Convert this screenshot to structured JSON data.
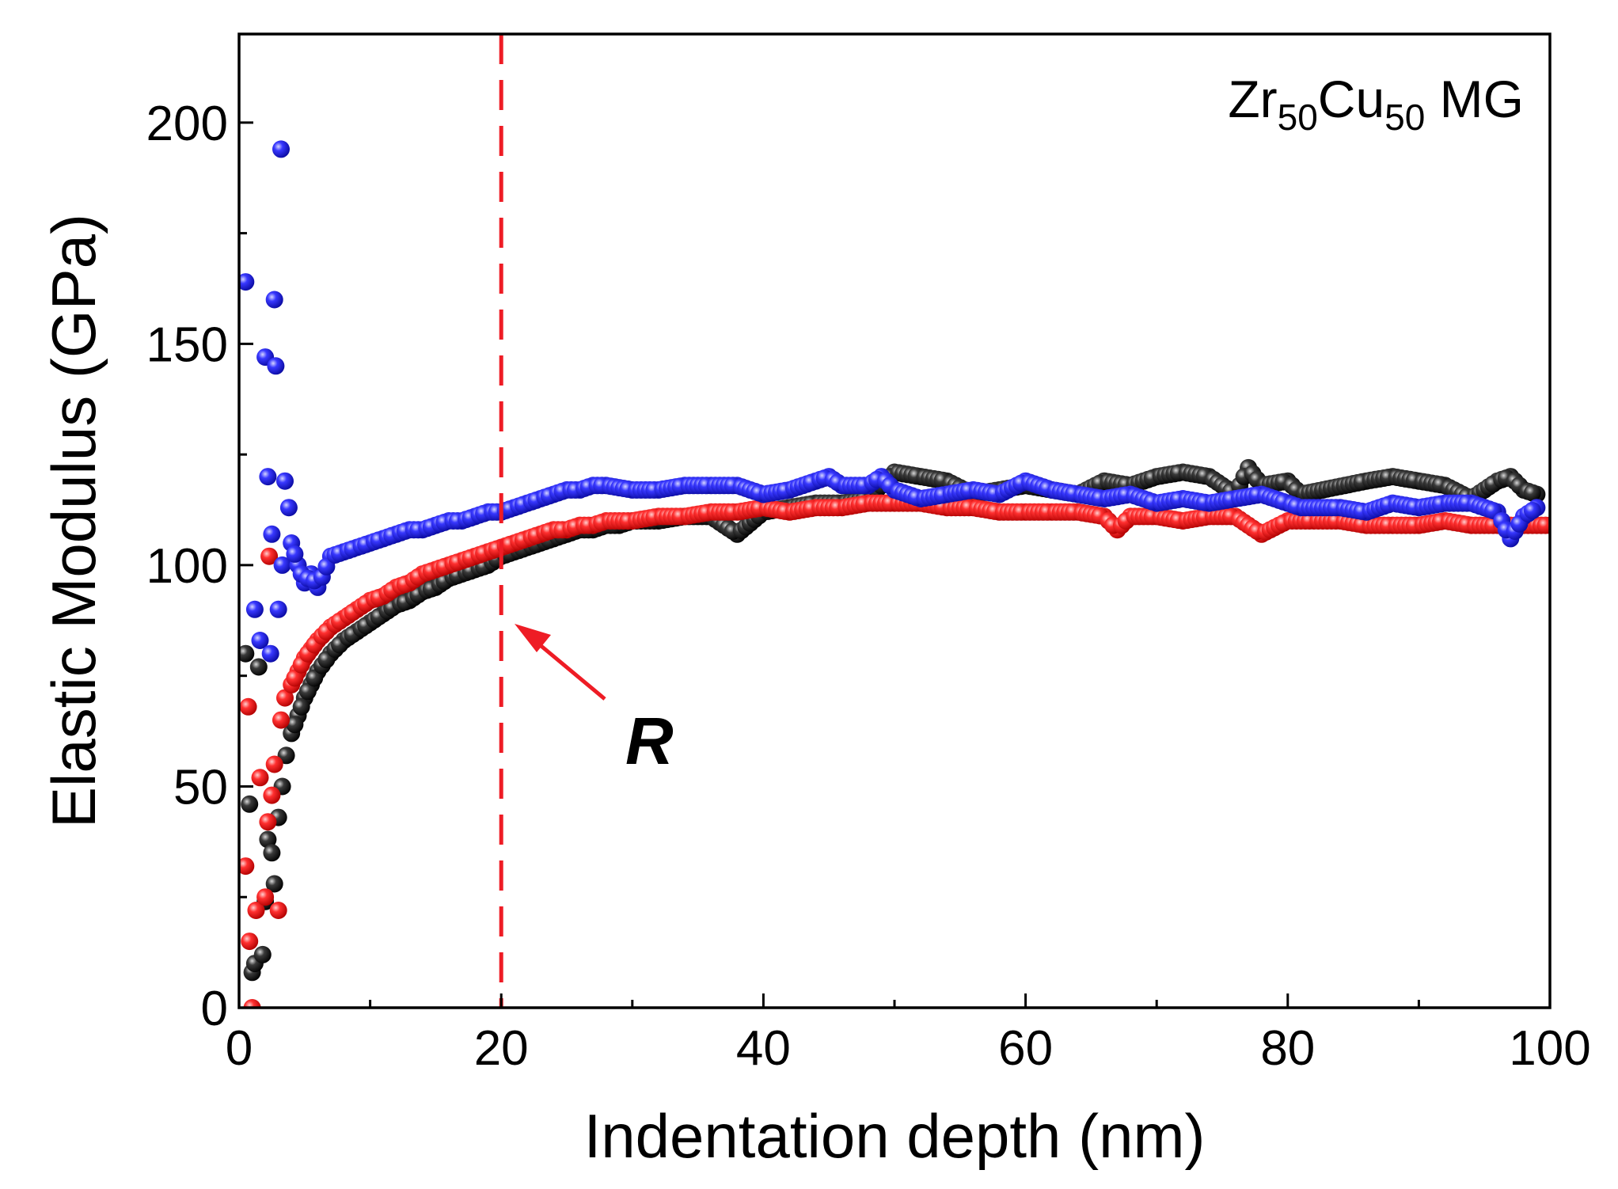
{
  "chart_data": {
    "type": "scatter",
    "title": "",
    "xlabel": "Indentation depth (nm)",
    "ylabel": "Elastic Modulus (GPa)",
    "xlim": [
      0,
      100
    ],
    "ylim": [
      0,
      220
    ],
    "x_ticks": [
      0,
      20,
      40,
      60,
      80,
      100
    ],
    "y_ticks": [
      0,
      50,
      100,
      150,
      200
    ],
    "grid": false,
    "legend": "none",
    "annotation": {
      "label": {
        "base": "Zr",
        "sub1": "50",
        "mid": "Cu",
        "sub2": "50",
        "tail": " MG"
      },
      "marker_line_x": 20,
      "marker_line_color": "#ee1c25",
      "arrow_label": "R"
    },
    "series": [
      {
        "color": "#000000",
        "points": [
          [
            0.5,
            80
          ],
          [
            0.8,
            46
          ],
          [
            1.0,
            8
          ],
          [
            1.2,
            10
          ],
          [
            1.5,
            77
          ],
          [
            1.8,
            12
          ],
          [
            2.0,
            24
          ],
          [
            2.2,
            38
          ],
          [
            2.5,
            35
          ],
          [
            2.7,
            28
          ],
          [
            3.0,
            43
          ],
          [
            3.3,
            50
          ],
          [
            3.6,
            57
          ],
          [
            4.0,
            62
          ],
          [
            4.5,
            66
          ],
          [
            5.0,
            70
          ],
          [
            5.5,
            73
          ],
          [
            6.0,
            76
          ],
          [
            7.0,
            80
          ],
          [
            8.0,
            83
          ],
          [
            9.0,
            85
          ],
          [
            10,
            87
          ],
          [
            11,
            89
          ],
          [
            12,
            91
          ],
          [
            13,
            92
          ],
          [
            14,
            94
          ],
          [
            15,
            95
          ],
          [
            16,
            97
          ],
          [
            17,
            98
          ],
          [
            18,
            99
          ],
          [
            19,
            100
          ],
          [
            20,
            102
          ],
          [
            21,
            103
          ],
          [
            22,
            104
          ],
          [
            23,
            105
          ],
          [
            24,
            106
          ],
          [
            25,
            107
          ],
          [
            26,
            108
          ],
          [
            27,
            108
          ],
          [
            28,
            109
          ],
          [
            29,
            109
          ],
          [
            30,
            110
          ],
          [
            32,
            110
          ],
          [
            34,
            111
          ],
          [
            36,
            111
          ],
          [
            38,
            107
          ],
          [
            40,
            112
          ],
          [
            42,
            113
          ],
          [
            44,
            114
          ],
          [
            46,
            114
          ],
          [
            48,
            115
          ],
          [
            50,
            121
          ],
          [
            52,
            120
          ],
          [
            54,
            119
          ],
          [
            56,
            116
          ],
          [
            58,
            117
          ],
          [
            60,
            118
          ],
          [
            62,
            117
          ],
          [
            64,
            116
          ],
          [
            66,
            119
          ],
          [
            68,
            118
          ],
          [
            70,
            120
          ],
          [
            72,
            121
          ],
          [
            74,
            120
          ],
          [
            76,
            116
          ],
          [
            77,
            122
          ],
          [
            78,
            118
          ],
          [
            80,
            119
          ],
          [
            81,
            116
          ],
          [
            86,
            119
          ],
          [
            88,
            120
          ],
          [
            90,
            119
          ],
          [
            92,
            118
          ],
          [
            94,
            115
          ],
          [
            96,
            119
          ],
          [
            97,
            120
          ],
          [
            98,
            117
          ],
          [
            99,
            116
          ]
        ]
      },
      {
        "color": "#ee1c25",
        "points": [
          [
            0.5,
            32
          ],
          [
            0.7,
            68
          ],
          [
            0.8,
            15
          ],
          [
            1.0,
            0
          ],
          [
            1.3,
            22
          ],
          [
            1.6,
            52
          ],
          [
            2.0,
            25
          ],
          [
            2.2,
            42
          ],
          [
            2.3,
            102
          ],
          [
            2.5,
            48
          ],
          [
            2.7,
            55
          ],
          [
            3.0,
            22
          ],
          [
            3.2,
            65
          ],
          [
            3.5,
            70
          ],
          [
            4.0,
            73
          ],
          [
            4.5,
            76
          ],
          [
            5.0,
            79
          ],
          [
            5.5,
            81
          ],
          [
            6.0,
            83
          ],
          [
            7.0,
            86
          ],
          [
            8.0,
            88
          ],
          [
            9.0,
            90
          ],
          [
            10,
            92
          ],
          [
            11,
            93
          ],
          [
            12,
            95
          ],
          [
            13,
            96
          ],
          [
            14,
            98
          ],
          [
            15,
            99
          ],
          [
            16,
            100
          ],
          [
            17,
            101
          ],
          [
            18,
            102
          ],
          [
            19,
            103
          ],
          [
            20,
            104
          ],
          [
            21,
            105
          ],
          [
            22,
            106
          ],
          [
            23,
            107
          ],
          [
            24,
            108
          ],
          [
            25,
            108
          ],
          [
            26,
            109
          ],
          [
            27,
            109
          ],
          [
            28,
            110
          ],
          [
            30,
            110
          ],
          [
            32,
            111
          ],
          [
            34,
            111
          ],
          [
            36,
            112
          ],
          [
            38,
            112
          ],
          [
            40,
            113
          ],
          [
            42,
            112
          ],
          [
            44,
            113
          ],
          [
            46,
            113
          ],
          [
            48,
            114
          ],
          [
            50,
            114
          ],
          [
            52,
            114
          ],
          [
            54,
            113
          ],
          [
            56,
            113
          ],
          [
            58,
            112
          ],
          [
            60,
            112
          ],
          [
            62,
            112
          ],
          [
            64,
            112
          ],
          [
            66,
            111
          ],
          [
            67,
            108
          ],
          [
            68,
            111
          ],
          [
            70,
            111
          ],
          [
            72,
            110
          ],
          [
            74,
            111
          ],
          [
            76,
            111
          ],
          [
            78,
            107
          ],
          [
            80,
            110
          ],
          [
            82,
            110
          ],
          [
            84,
            110
          ],
          [
            86,
            109
          ],
          [
            88,
            109
          ],
          [
            90,
            109
          ],
          [
            92,
            110
          ],
          [
            94,
            109
          ],
          [
            96,
            109
          ],
          [
            98,
            109
          ],
          [
            100,
            109
          ]
        ]
      },
      {
        "color": "#1f1fe0",
        "points": [
          [
            0.5,
            164
          ],
          [
            1.2,
            90
          ],
          [
            1.6,
            83
          ],
          [
            2.0,
            147
          ],
          [
            2.2,
            120
          ],
          [
            2.4,
            80
          ],
          [
            2.5,
            107
          ],
          [
            2.7,
            160
          ],
          [
            2.8,
            145
          ],
          [
            3.0,
            90
          ],
          [
            3.2,
            194
          ],
          [
            3.3,
            100
          ],
          [
            3.5,
            119
          ],
          [
            3.8,
            113
          ],
          [
            4.0,
            105
          ],
          [
            4.5,
            100
          ],
          [
            5.0,
            96
          ],
          [
            5.5,
            98
          ],
          [
            6.0,
            95
          ],
          [
            7.0,
            102
          ],
          [
            8.0,
            103
          ],
          [
            9.0,
            104
          ],
          [
            10,
            105
          ],
          [
            11,
            106
          ],
          [
            12,
            107
          ],
          [
            13,
            108
          ],
          [
            14,
            108
          ],
          [
            15,
            109
          ],
          [
            16,
            110
          ],
          [
            17,
            110
          ],
          [
            18,
            111
          ],
          [
            19,
            112
          ],
          [
            20,
            112
          ],
          [
            21,
            113
          ],
          [
            22,
            114
          ],
          [
            23,
            115
          ],
          [
            24,
            116
          ],
          [
            25,
            117
          ],
          [
            26,
            117
          ],
          [
            27,
            118
          ],
          [
            28,
            118
          ],
          [
            30,
            117
          ],
          [
            32,
            117
          ],
          [
            34,
            118
          ],
          [
            36,
            118
          ],
          [
            38,
            118
          ],
          [
            40,
            116
          ],
          [
            42,
            117
          ],
          [
            44,
            119
          ],
          [
            45,
            120
          ],
          [
            46,
            118
          ],
          [
            48,
            118
          ],
          [
            49,
            120
          ],
          [
            50,
            117
          ],
          [
            52,
            115
          ],
          [
            54,
            116
          ],
          [
            56,
            117
          ],
          [
            58,
            116
          ],
          [
            60,
            119
          ],
          [
            62,
            117
          ],
          [
            64,
            116
          ],
          [
            66,
            115
          ],
          [
            68,
            116
          ],
          [
            70,
            114
          ],
          [
            72,
            115
          ],
          [
            74,
            114
          ],
          [
            76,
            115
          ],
          [
            78,
            116
          ],
          [
            80,
            114
          ],
          [
            81,
            113
          ],
          [
            84,
            113
          ],
          [
            86,
            112
          ],
          [
            88,
            114
          ],
          [
            90,
            113
          ],
          [
            92,
            114
          ],
          [
            94,
            114
          ],
          [
            96,
            112
          ],
          [
            97,
            106
          ],
          [
            98,
            111
          ],
          [
            99,
            113
          ]
        ]
      }
    ]
  }
}
